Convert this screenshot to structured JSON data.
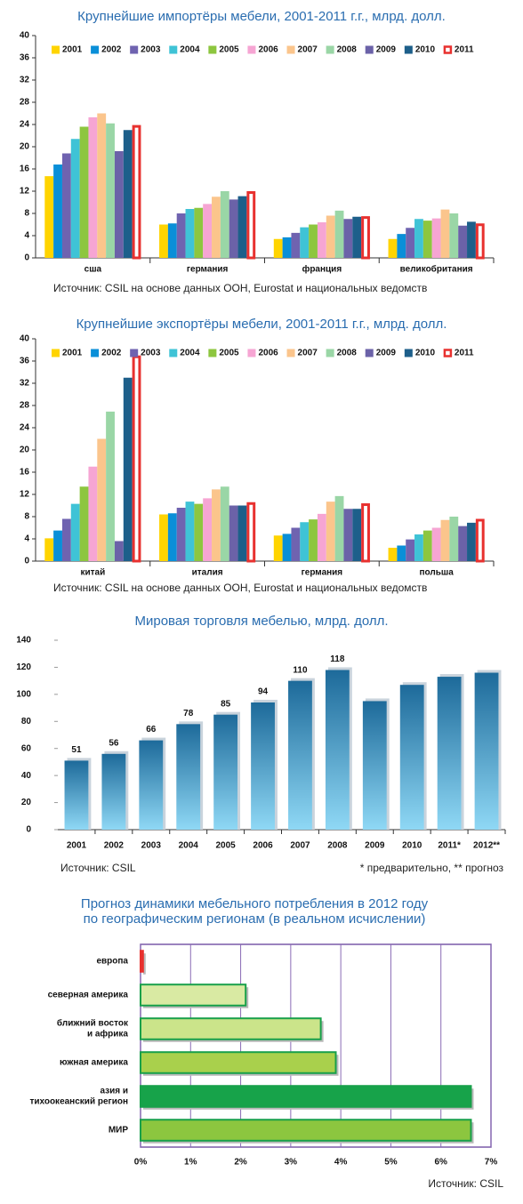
{
  "chart_data": [
    {
      "type": "bar",
      "title": "Крупнейшие импортёры мебели, 2001-2011 г.г., млрд. долл.",
      "source": "Источник: CSIL на основе данных ООН, Eurostat и национальных ведомств",
      "categories": [
        "сша",
        "германия",
        "франция",
        "великобритания"
      ],
      "ylim": [
        0,
        40
      ],
      "yticks": [
        0,
        4,
        8,
        12,
        16,
        20,
        24,
        28,
        32,
        36,
        40
      ],
      "grid": false,
      "legend": "top",
      "series": [
        {
          "name": "2001",
          "color": "#ffd400",
          "values": [
            14.7,
            6.0,
            3.4,
            3.4
          ]
        },
        {
          "name": "2002",
          "color": "#0a8fd8",
          "values": [
            16.8,
            6.2,
            3.7,
            4.3
          ]
        },
        {
          "name": "2003",
          "color": "#6f63b0",
          "values": [
            18.8,
            8.0,
            4.5,
            5.4
          ]
        },
        {
          "name": "2004",
          "color": "#3fc3d6",
          "values": [
            21.4,
            8.8,
            5.5,
            7.0
          ]
        },
        {
          "name": "2005",
          "color": "#8dc63f",
          "values": [
            23.6,
            9.0,
            6.0,
            6.7
          ]
        },
        {
          "name": "2006",
          "color": "#f6a5d3",
          "values": [
            25.3,
            9.7,
            6.4,
            7.1
          ]
        },
        {
          "name": "2007",
          "color": "#fbc58c",
          "values": [
            26.0,
            11.0,
            7.6,
            8.7
          ]
        },
        {
          "name": "2008",
          "color": "#9ad6a6",
          "values": [
            24.2,
            12.0,
            8.5,
            8.0
          ]
        },
        {
          "name": "2009",
          "color": "#6b62a8",
          "values": [
            19.2,
            10.5,
            7.0,
            5.8
          ]
        },
        {
          "name": "2010",
          "color": "#1d5f8a",
          "values": [
            23.0,
            11.1,
            7.4,
            6.5
          ]
        },
        {
          "name": "2011",
          "color": "#e8312f",
          "style": "outline",
          "values": [
            23.9,
            12.0,
            7.5,
            6.2
          ]
        }
      ]
    },
    {
      "type": "bar",
      "title": "Крупнейшие экспортёры мебели, 2001-2011 г.г., млрд. долл.",
      "source": "Источник: CSIL на основе данных ООН, Eurostat и национальных ведомств",
      "categories": [
        "китай",
        "италия",
        "германия",
        "польша"
      ],
      "ylim": [
        0,
        40
      ],
      "yticks": [
        0,
        4,
        8,
        12,
        16,
        20,
        24,
        28,
        32,
        36,
        40
      ],
      "grid": false,
      "legend": "top",
      "series": [
        {
          "name": "2001",
          "color": "#ffd400",
          "values": [
            4.1,
            8.4,
            4.6,
            2.4
          ]
        },
        {
          "name": "2002",
          "color": "#0a8fd8",
          "values": [
            5.5,
            8.6,
            4.9,
            2.8
          ]
        },
        {
          "name": "2003",
          "color": "#6f63b0",
          "values": [
            7.6,
            9.6,
            6.0,
            3.9
          ]
        },
        {
          "name": "2004",
          "color": "#3fc3d6",
          "values": [
            10.3,
            10.7,
            7.0,
            4.8
          ]
        },
        {
          "name": "2005",
          "color": "#8dc63f",
          "values": [
            13.4,
            10.3,
            7.5,
            5.5
          ]
        },
        {
          "name": "2006",
          "color": "#f6a5d3",
          "values": [
            17.0,
            11.3,
            8.5,
            6.0
          ]
        },
        {
          "name": "2007",
          "color": "#fbc58c",
          "values": [
            22.0,
            12.9,
            10.7,
            7.4
          ]
        },
        {
          "name": "2008",
          "color": "#9ad6a6",
          "values": [
            26.9,
            13.4,
            11.7,
            8.0
          ]
        },
        {
          "name": "2009",
          "color": "#6b62a8",
          "values": [
            3.6,
            10.0,
            9.4,
            6.3
          ]
        },
        {
          "name": "2010",
          "color": "#1d5f8a",
          "values": [
            33.0,
            10.0,
            9.4,
            6.9
          ]
        },
        {
          "name": "2011",
          "color": "#e8312f",
          "style": "outline",
          "values": [
            37.0,
            10.6,
            10.4,
            7.6
          ]
        }
      ]
    },
    {
      "type": "column",
      "title": "Мировая торговля мебелью, млрд. долл.",
      "source": "Источник: CSIL",
      "note": "* предварительно, ** прогноз",
      "categories": [
        "2001",
        "2002",
        "2003",
        "2004",
        "2005",
        "2006",
        "2007",
        "2008",
        "2009",
        "2010",
        "2011*",
        "2012**"
      ],
      "values": [
        51,
        56,
        66,
        78,
        85,
        94,
        110,
        118,
        95,
        107,
        113,
        116
      ],
      "value_labels": [
        51,
        56,
        66,
        78,
        85,
        94,
        110,
        118,
        null,
        null,
        null,
        null
      ],
      "color": "#1d6a9a",
      "color_light": "#8fd8f5",
      "ylim": [
        0,
        140
      ],
      "yticks": [
        0,
        20,
        40,
        60,
        80,
        100,
        120,
        140
      ],
      "grid": false
    },
    {
      "type": "hbar",
      "title": "Прогноз динамики мебельного потребления в 2012 году\nпо географическим регионам (в реальном исчислении)",
      "source": "Источник: CSIL",
      "categories": [
        "европа",
        "северная америка",
        "ближний восток\nи африка",
        "южная америка",
        "азия и\nтихоокеанский регион",
        "МИР"
      ],
      "values": [
        0.05,
        2.1,
        3.6,
        3.9,
        6.6,
        6.6
      ],
      "colors": [
        "#e8312f",
        "#d9eaa3",
        "#cbe48a",
        "#a9d04c",
        "#17a34a",
        "#8cc63f"
      ],
      "border_color": "#18a04a",
      "xlim": [
        0,
        7
      ],
      "xticks": [
        {
          "value": 0,
          "label": "0%"
        },
        {
          "value": 1,
          "label": "1%"
        },
        {
          "value": 2,
          "label": "2%"
        },
        {
          "value": 3,
          "label": "3%"
        },
        {
          "value": 4,
          "label": "4%"
        },
        {
          "value": 5,
          "label": "5%"
        },
        {
          "value": 6,
          "label": "6%"
        },
        {
          "value": 7,
          "label": "7%"
        }
      ],
      "grid": true
    }
  ]
}
